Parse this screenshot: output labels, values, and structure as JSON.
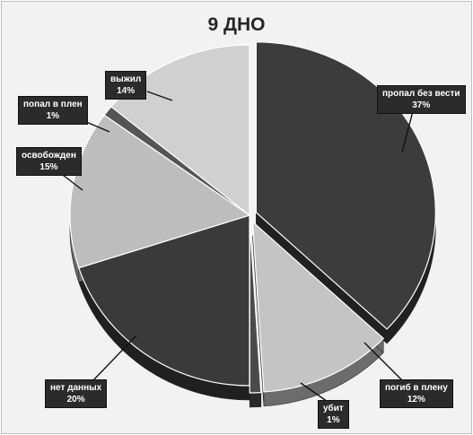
{
  "chart_data": {
    "type": "pie",
    "title": "9 ДНО",
    "slices": [
      {
        "label": "пропал без вести",
        "value": 37,
        "value_label": "37%",
        "color": "#3c3c3c"
      },
      {
        "label": "погиб в плену",
        "value": 12,
        "value_label": "12%",
        "color": "#c4c4c4"
      },
      {
        "label": "убит",
        "value": 1,
        "value_label": "1%",
        "color": "#4a4a4a"
      },
      {
        "label": "нет данных",
        "value": 20,
        "value_label": "20%",
        "color": "#3a3a3a"
      },
      {
        "label": "освобожден",
        "value": 15,
        "value_label": "15%",
        "color": "#bdbdbd"
      },
      {
        "label": "попал в плен",
        "value": 1,
        "value_label": "1%",
        "color": "#555555"
      },
      {
        "label": "выжил",
        "value": 14,
        "value_label": "14%",
        "color": "#d0d0d0"
      }
    ],
    "exploded": [
      "пропал без вести",
      "погиб в плену",
      "убит"
    ],
    "legend": "none",
    "style": "3d-pie-with-callouts"
  }
}
